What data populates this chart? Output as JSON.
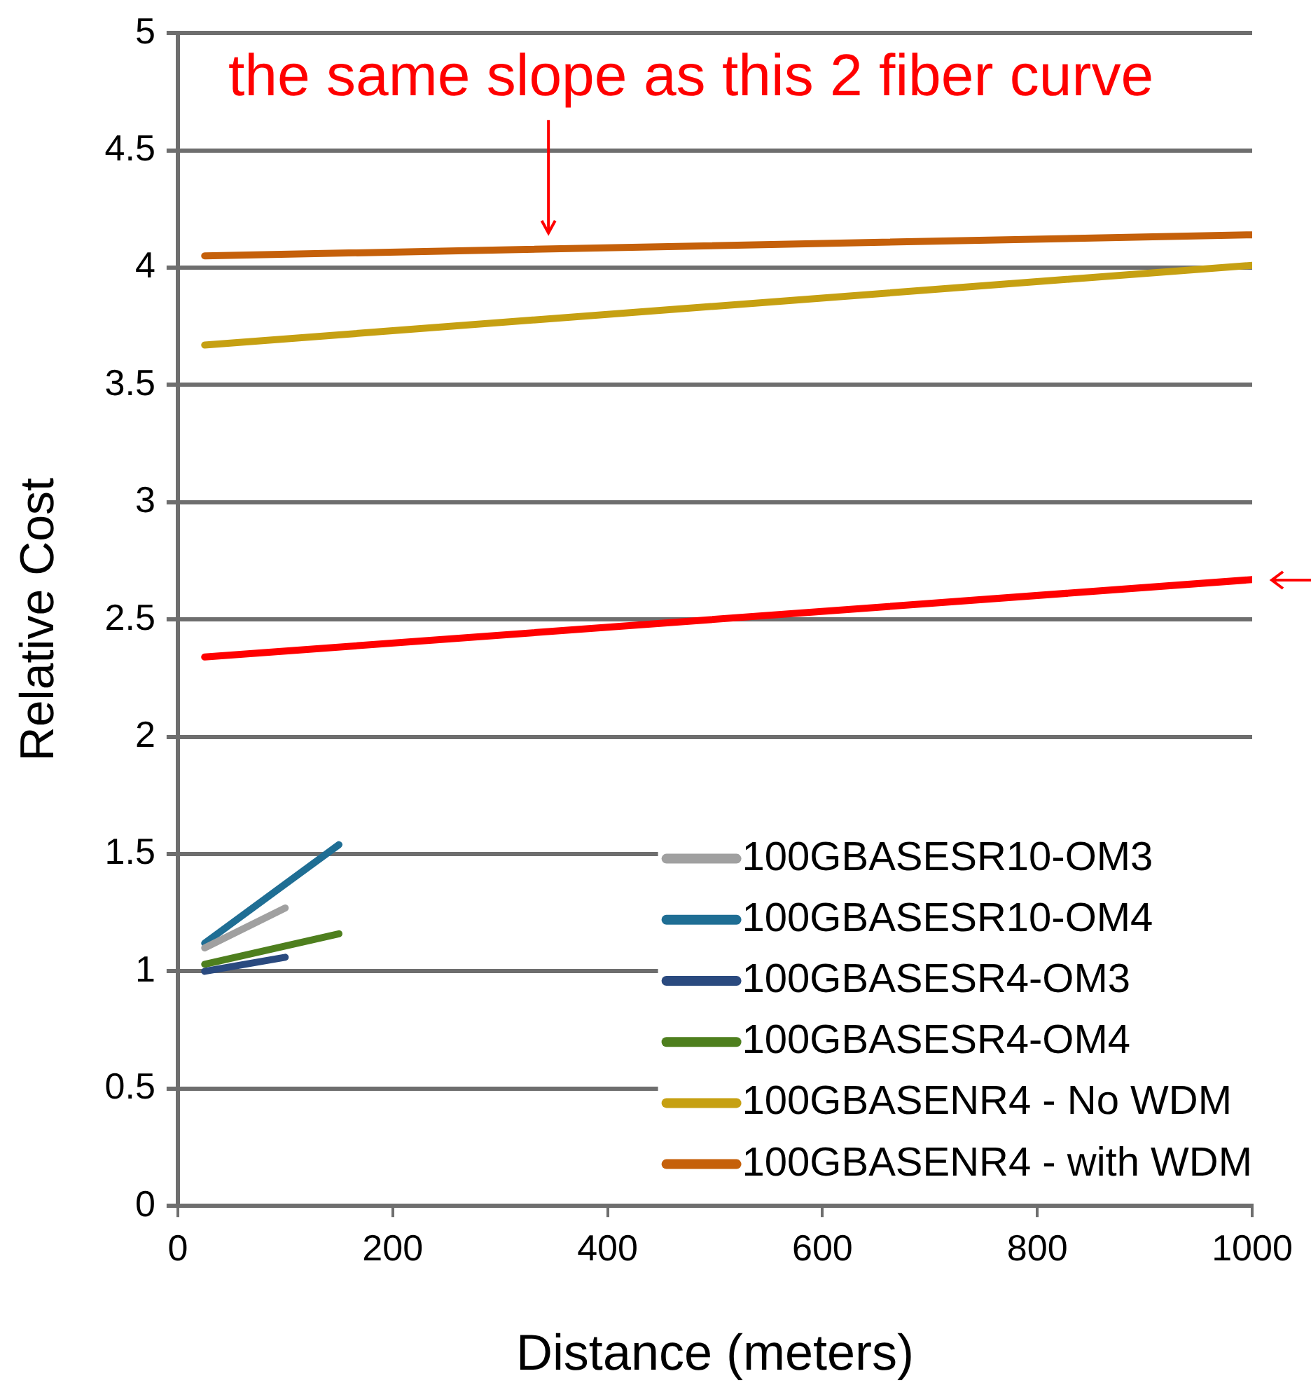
{
  "chart_data": {
    "type": "line",
    "xlabel": "Distance (meters)",
    "ylabel": "Relative Cost",
    "xlim": [
      0,
      1000
    ],
    "xticks": [
      0,
      200,
      400,
      600,
      800,
      1000
    ],
    "ylim": [
      0,
      5
    ],
    "yticks": [
      0,
      0.5,
      1,
      1.5,
      2,
      2.5,
      3,
      3.5,
      4,
      4.5,
      5
    ],
    "grid": "y",
    "legend": "bottom right",
    "marker": "none",
    "line_style": "solid",
    "annotations": [
      {
        "text": "the same slope as this 2 fiber curve",
        "x": 345,
        "y": 4.1
      }
    ],
    "series": [
      {
        "name": "100GBASESR10-OM3",
        "color": "#a0a0a0",
        "x": [
          25,
          100
        ],
        "values": [
          1.1,
          1.27
        ]
      },
      {
        "name": "100GBASESR10-OM4",
        "color": "#1f6e94",
        "x": [
          25,
          150
        ],
        "values": [
          1.12,
          1.54
        ]
      },
      {
        "name": "100GBASESR4-OM3",
        "color": "#2a4a7f",
        "x": [
          25,
          100
        ],
        "values": [
          1.0,
          1.06
        ]
      },
      {
        "name": "100GBASESR4-OM4",
        "color": "#4e7f1e",
        "x": [
          25,
          150
        ],
        "values": [
          1.03,
          1.16
        ]
      },
      {
        "name": "100GBASENR4 - No WDM",
        "color": "#c6a012",
        "x": [
          25,
          1000
        ],
        "values": [
          3.67,
          4.01
        ]
      },
      {
        "name": "100GBASENR4 - with WDM",
        "color": "#c5600a",
        "x": [
          25,
          1000
        ],
        "values": [
          4.05,
          4.14
        ]
      },
      {
        "color": "#ff0000",
        "x": [
          25,
          1000
        ],
        "values": [
          2.34,
          2.67
        ]
      }
    ]
  }
}
